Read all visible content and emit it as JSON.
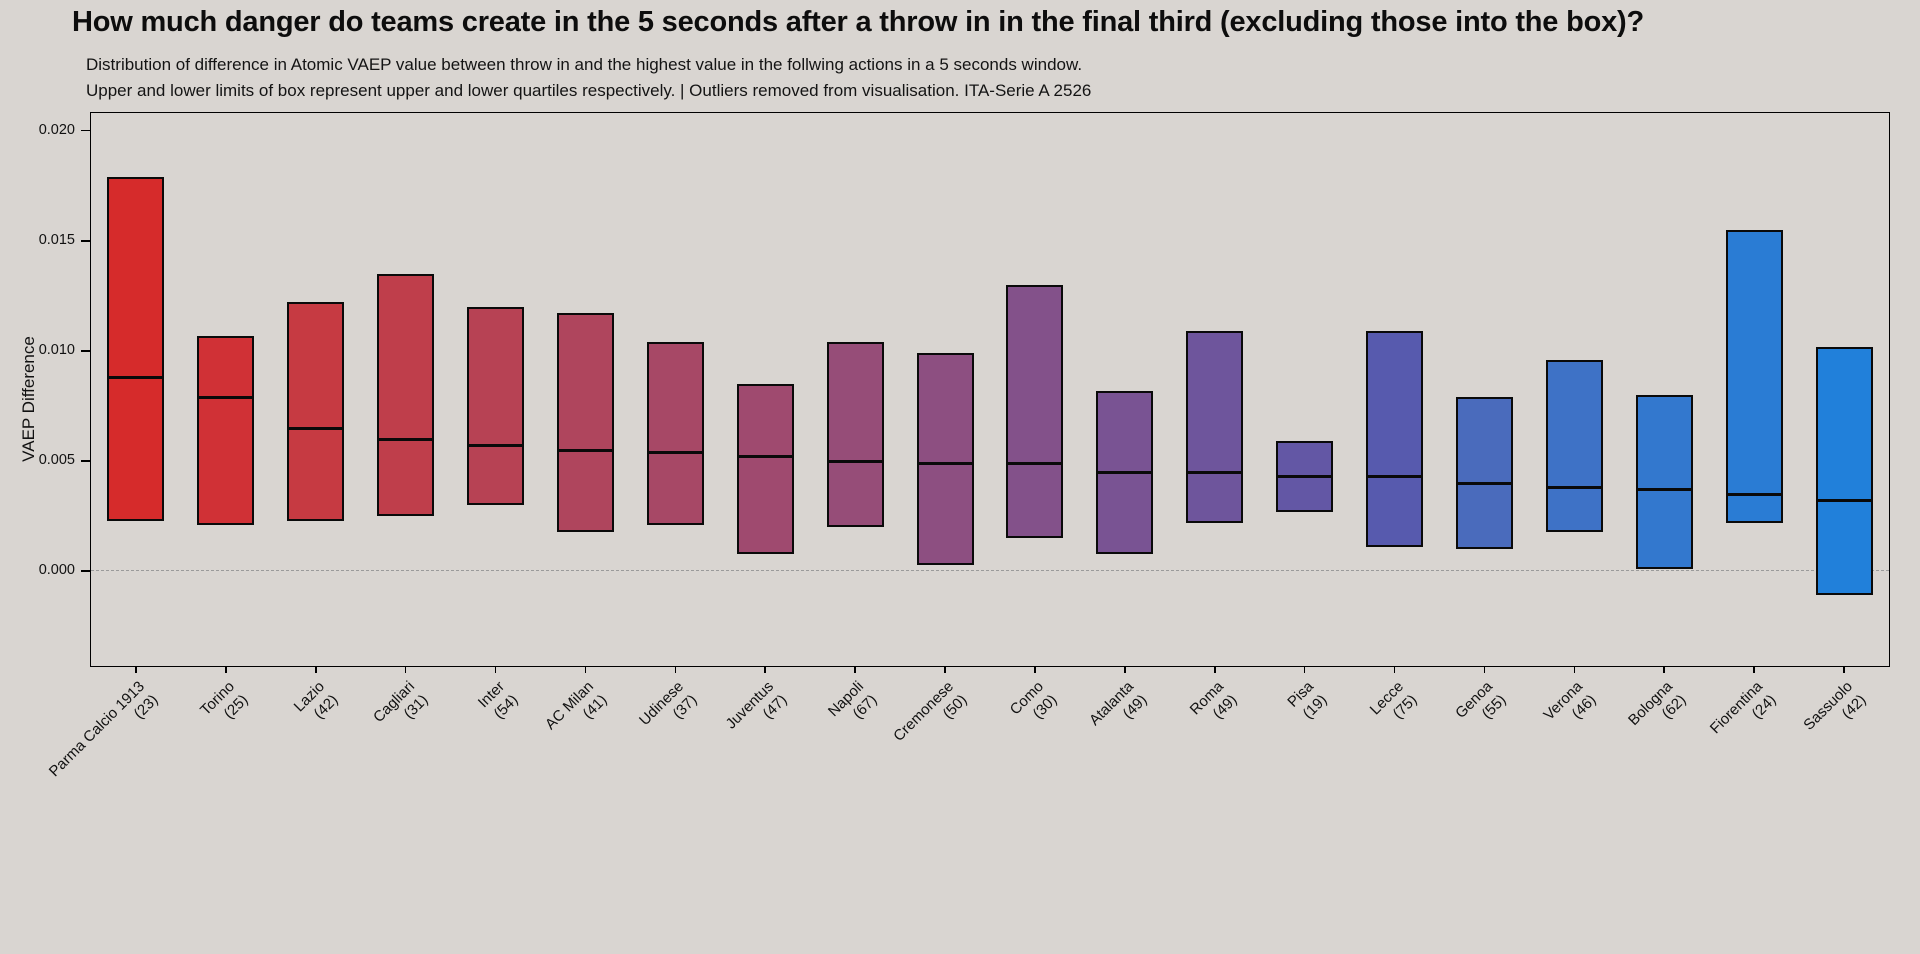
{
  "title": "How much danger do teams create in the 5 seconds after a throw in in the final third (excluding those into the box)?",
  "subtitle_line1": "Distribution of difference in Atomic VAEP value between throw in and the highest value in the follwing actions in a 5 seconds window.",
  "subtitle_line2": "Upper and lower limits of box represent upper and lower quartiles respectively. | Outliers removed from visualisation. ITA-Serie A 2526",
  "chart_data": {
    "type": "box",
    "title": "How much danger do teams create in the 5 seconds after a throw in in the final third (excluding those into the box)?",
    "xlabel": "",
    "ylabel": "VAEP Difference",
    "ylim": [
      -0.0043,
      0.0208
    ],
    "grid": false,
    "zero_line_value": 0,
    "background_color": "#d9d5d1",
    "box_border_color": "#0a0a0a",
    "zero_line_color": "#9a9a9a",
    "yticks": [
      {
        "value": 0.0,
        "label": "0.000"
      },
      {
        "value": 0.005,
        "label": "0.005"
      },
      {
        "value": 0.01,
        "label": "0.010"
      },
      {
        "value": 0.015,
        "label": "0.015"
      },
      {
        "value": 0.02,
        "label": "0.020"
      }
    ],
    "teams": [
      {
        "name": "Parma Calcio 1913",
        "count": 23,
        "q1": 0.0023,
        "median": 0.0088,
        "q3": 0.0179,
        "color": "#d62b2b"
      },
      {
        "name": "Torino",
        "count": 25,
        "q1": 0.0021,
        "median": 0.0079,
        "q3": 0.0107,
        "color": "#d03136"
      },
      {
        "name": "Lazio",
        "count": 42,
        "q1": 0.0023,
        "median": 0.0065,
        "q3": 0.0122,
        "color": "#c63a42"
      },
      {
        "name": "Cagliari",
        "count": 31,
        "q1": 0.0025,
        "median": 0.006,
        "q3": 0.0135,
        "color": "#bf3e4b"
      },
      {
        "name": "Inter",
        "count": 54,
        "q1": 0.003,
        "median": 0.0057,
        "q3": 0.012,
        "color": "#b74254"
      },
      {
        "name": "AC Milan",
        "count": 41,
        "q1": 0.0018,
        "median": 0.0055,
        "q3": 0.0117,
        "color": "#af455d"
      },
      {
        "name": "Udinese",
        "count": 37,
        "q1": 0.0021,
        "median": 0.0054,
        "q3": 0.0104,
        "color": "#a74866"
      },
      {
        "name": "Juventus",
        "count": 47,
        "q1": 0.0008,
        "median": 0.0052,
        "q3": 0.0085,
        "color": "#9f4a6f"
      },
      {
        "name": "Napoli",
        "count": 67,
        "q1": 0.002,
        "median": 0.005,
        "q3": 0.0104,
        "color": "#964d78"
      },
      {
        "name": "Cremonese",
        "count": 50,
        "q1": 0.0003,
        "median": 0.0049,
        "q3": 0.0099,
        "color": "#8d4f81"
      },
      {
        "name": "Como",
        "count": 30,
        "q1": 0.0015,
        "median": 0.0049,
        "q3": 0.013,
        "color": "#83518a"
      },
      {
        "name": "Atalanta",
        "count": 49,
        "q1": 0.0008,
        "median": 0.0045,
        "q3": 0.0082,
        "color": "#795393"
      },
      {
        "name": "Roma",
        "count": 49,
        "q1": 0.0022,
        "median": 0.0045,
        "q3": 0.0109,
        "color": "#6e559c"
      },
      {
        "name": "Pisa",
        "count": 19,
        "q1": 0.0027,
        "median": 0.0043,
        "q3": 0.0059,
        "color": "#6357a5"
      },
      {
        "name": "Lecce",
        "count": 75,
        "q1": 0.0011,
        "median": 0.0043,
        "q3": 0.0109,
        "color": "#575aae"
      },
      {
        "name": "Genoa",
        "count": 55,
        "q1": 0.001,
        "median": 0.004,
        "q3": 0.0079,
        "color": "#4a6bbc"
      },
      {
        "name": "Verona",
        "count": 46,
        "q1": 0.0018,
        "median": 0.0038,
        "q3": 0.0096,
        "color": "#3e72c6"
      },
      {
        "name": "Bologna",
        "count": 62,
        "q1": 0.0001,
        "median": 0.0037,
        "q3": 0.008,
        "color": "#3378ce"
      },
      {
        "name": "Fiorentina",
        "count": 24,
        "q1": 0.0022,
        "median": 0.0035,
        "q3": 0.0155,
        "color": "#2a7cd4"
      },
      {
        "name": "Sassuolo",
        "count": 42,
        "q1": -0.0011,
        "median": 0.0032,
        "q3": 0.0102,
        "color": "#2180da"
      }
    ]
  }
}
